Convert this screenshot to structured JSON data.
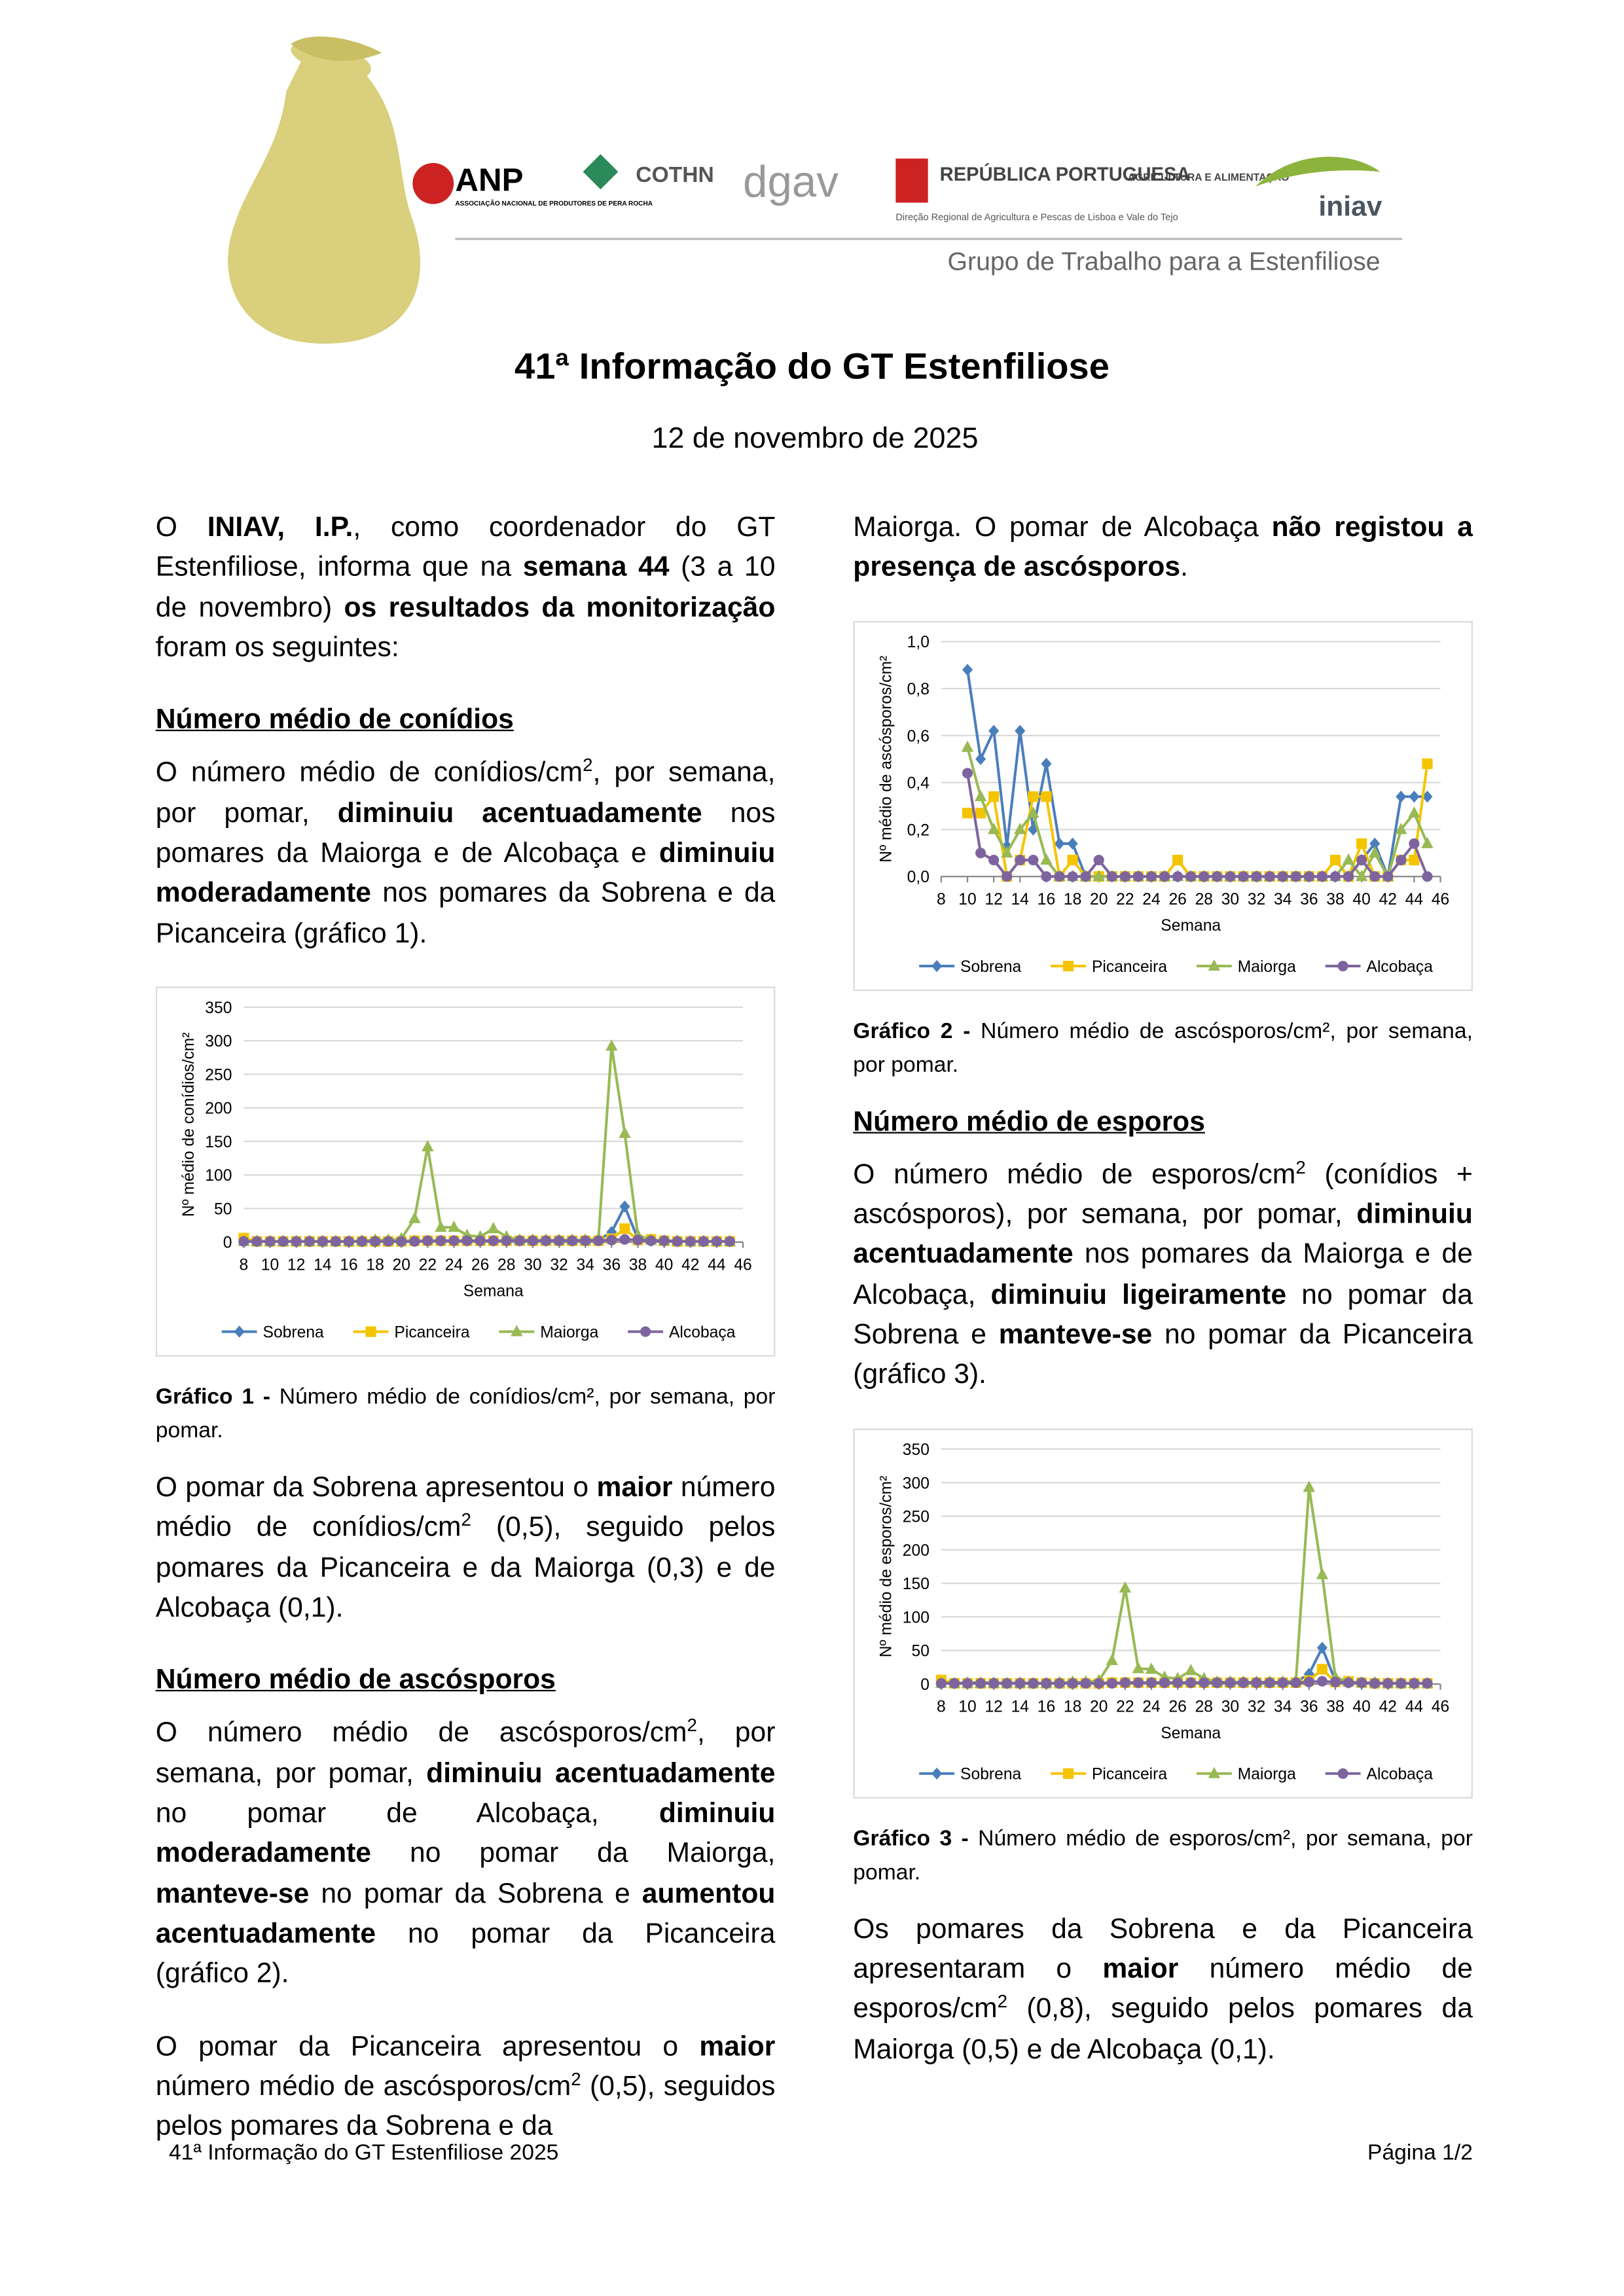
{
  "header": {
    "logos": [
      "ANP",
      "ASSOCIAÇÃO NACIONAL DE PRODUTORES DE PERA ROCHA",
      "COTHN",
      "dgav",
      "REPÚBLICA PORTUGUESA",
      "AGRICULTURA E ALIMENTAÇÃO",
      "Direção Regional de Agricultura e Pescas de Lisboa e Vale do Tejo",
      "iniav"
    ],
    "banner": "Grupo de Trabalho para a Estenfiliose"
  },
  "title": "41ª Informação do GT Estenfiliose",
  "date": "12 de novembro de 2025",
  "left_column": [
    {
      "kind": "paragraph",
      "runs": [
        "O ",
        {
          "style": "bold",
          "text": "INIAV, I.P."
        },
        ", como coordenador do GT Estenfiliose, informa que na ",
        {
          "style": "bold",
          "text": "semana 44"
        },
        " (3 a 10 de novembro) ",
        {
          "style": "bold",
          "text": "os resultados da monitorização"
        },
        " foram os seguintes:"
      ]
    },
    {
      "kind": "heading",
      "text": "Número médio de conídios"
    },
    {
      "kind": "paragraph",
      "runs": [
        "O número médio de conídios/cm",
        {
          "style": "sup",
          "text": "2"
        },
        ", por semana, por pomar, ",
        {
          "style": "bold",
          "text": "diminuiu acentuadamente"
        },
        " nos pomares da Maiorga e de Alcobaça e ",
        {
          "style": "bold",
          "text": "diminuiu moderadamente"
        },
        " nos pomares da Sobrena e da Picanceira (gráfico 1)."
      ]
    },
    {
      "kind": "chart",
      "chart_data": {
        "type": "line",
        "y_label": "Nº médio de conídios/cm²",
        "x_label": "Semana",
        "x": [
          8,
          9,
          10,
          11,
          12,
          13,
          14,
          15,
          16,
          17,
          18,
          19,
          20,
          21,
          22,
          23,
          24,
          25,
          26,
          27,
          28,
          29,
          30,
          31,
          32,
          33,
          34,
          35,
          36,
          37,
          38,
          39,
          40,
          41,
          42,
          43,
          44,
          45
        ],
        "xlim": [
          8,
          46
        ],
        "xticks": [
          8,
          10,
          12,
          14,
          16,
          18,
          20,
          22,
          24,
          26,
          28,
          30,
          32,
          34,
          36,
          38,
          40,
          42,
          44,
          46
        ],
        "ylim": [
          0,
          350
        ],
        "yticks": [
          0,
          50,
          100,
          150,
          200,
          250,
          300,
          350
        ],
        "grid": true,
        "series": [
          {
            "name": "Sobrena",
            "color": "#4a7ebb",
            "marker": "diamond",
            "values": [
              1,
              1,
              1,
              1,
              1,
              1,
              1,
              1,
              1,
              1,
              2,
              2,
              2,
              2,
              2,
              2,
              2,
              2,
              2,
              2,
              2,
              2,
              2,
              2,
              2,
              2,
              2,
              3,
              15,
              53,
              5,
              2,
              1,
              1,
              1,
              1,
              1,
              1
            ]
          },
          {
            "name": "Picanceira",
            "color": "#f5c400",
            "marker": "square",
            "values": [
              6,
              1,
              1,
              1,
              1,
              1,
              1,
              1,
              1,
              1,
              1,
              1,
              1,
              2,
              2,
              2,
              2,
              2,
              2,
              2,
              2,
              2,
              2,
              2,
              2,
              2,
              2,
              2,
              5,
              20,
              3,
              4,
              2,
              1,
              1,
              1,
              1,
              1
            ]
          },
          {
            "name": "Maiorga",
            "color": "#98b954",
            "marker": "triangle",
            "values": [
              1,
              1,
              1,
              1,
              1,
              1,
              1,
              1,
              1,
              2,
              3,
              3,
              5,
              35,
              142,
              22,
              22,
              10,
              8,
              20,
              8,
              3,
              3,
              3,
              3,
              3,
              3,
              5,
              292,
              162,
              10,
              3,
              2,
              2,
              1,
              1,
              1,
              1
            ]
          },
          {
            "name": "Alcobaça",
            "color": "#7e649e",
            "marker": "circle",
            "values": [
              1,
              1,
              1,
              1,
              1,
              1,
              1,
              1,
              1,
              1,
              1,
              1,
              1,
              1,
              2,
              2,
              2,
              2,
              2,
              2,
              2,
              2,
              2,
              2,
              2,
              2,
              2,
              2,
              3,
              4,
              3,
              2,
              2,
              1,
              1,
              1,
              1,
              1
            ]
          }
        ]
      }
    },
    {
      "kind": "caption",
      "runs": [
        {
          "style": "bold",
          "text": "Gráfico 1 -"
        },
        " Número médio de conídios/cm², por semana, por pomar."
      ]
    },
    {
      "kind": "paragraph",
      "runs": [
        "O pomar da Sobrena apresentou o ",
        {
          "style": "bold",
          "text": "maior"
        },
        " número médio de conídios/cm",
        {
          "style": "sup",
          "text": "2"
        },
        " (0,5), seguido pelos pomares da Picanceira e da Maiorga (0,3) e de Alcobaça (0,1)."
      ]
    },
    {
      "kind": "heading",
      "text": "Número médio de ascósporos"
    },
    {
      "kind": "paragraph",
      "runs": [
        "O número médio de ascósporos/cm",
        {
          "style": "sup",
          "text": "2"
        },
        ", por semana, por pomar, ",
        {
          "style": "bold",
          "text": "diminuiu acentuadamente"
        },
        " no pomar de Alcobaça, ",
        {
          "style": "bold",
          "text": "diminuiu moderadamente"
        },
        " no pomar da Maiorga, ",
        {
          "style": "bold",
          "text": "manteve-se"
        },
        " no pomar da Sobrena e ",
        {
          "style": "bold",
          "text": "aumentou acentuadamente"
        },
        " no pomar da Picanceira (gráfico 2)."
      ]
    },
    {
      "kind": "paragraph",
      "runs": [
        "O pomar da Picanceira apresentou o ",
        {
          "style": "bold",
          "text": "maior"
        },
        " número médio de ascósporos/cm",
        {
          "style": "sup",
          "text": "2"
        },
        " (0,5), seguidos pelos pomares da Sobrena e da"
      ]
    }
  ],
  "right_column": [
    {
      "kind": "paragraph",
      "runs": [
        "Maiorga. O pomar de Alcobaça ",
        {
          "style": "bold",
          "text": "não registou a presença de ascósporos"
        },
        "."
      ]
    },
    {
      "kind": "chart",
      "chart_data": {
        "type": "line",
        "y_label": "Nº médio de ascósporos/cm²",
        "x_label": "Semana",
        "x": [
          10,
          11,
          12,
          13,
          14,
          15,
          16,
          17,
          18,
          19,
          20,
          21,
          22,
          23,
          24,
          25,
          26,
          27,
          28,
          29,
          30,
          31,
          32,
          33,
          34,
          35,
          36,
          37,
          38,
          39,
          40,
          41,
          42,
          43,
          44,
          45
        ],
        "xlim": [
          8,
          46
        ],
        "xticks": [
          8,
          10,
          12,
          14,
          16,
          18,
          20,
          22,
          24,
          26,
          28,
          30,
          32,
          34,
          36,
          38,
          40,
          42,
          44,
          46
        ],
        "ylim": [
          0,
          1
        ],
        "yticks": [
          {
            "value": 0,
            "label": "0,0"
          },
          {
            "value": 0.2,
            "label": "0,2"
          },
          {
            "value": 0.4,
            "label": "0,4"
          },
          {
            "value": 0.6,
            "label": "0,6"
          },
          {
            "value": 0.8,
            "label": "0,8"
          },
          {
            "value": 1,
            "label": "1,0"
          }
        ],
        "grid": true,
        "series": [
          {
            "name": "Sobrena",
            "color": "#4a7ebb",
            "marker": "diamond",
            "values": [
              0.88,
              0.5,
              0.62,
              0.13,
              0.62,
              0.2,
              0.48,
              0.14,
              0.14,
              0,
              0,
              0,
              0,
              0,
              0,
              0,
              0,
              0,
              0,
              0,
              0,
              0,
              0,
              0,
              0,
              0,
              0,
              0,
              0,
              0,
              0.07,
              0.14,
              0,
              0.34,
              0.34,
              0.34
            ]
          },
          {
            "name": "Picanceira",
            "color": "#f5c400",
            "marker": "square",
            "values": [
              0.27,
              0.27,
              0.34,
              0,
              0.07,
              0.34,
              0.34,
              0,
              0.07,
              0,
              0,
              0,
              0,
              0,
              0,
              0,
              0.07,
              0,
              0,
              0,
              0,
              0,
              0,
              0,
              0,
              0,
              0,
              0,
              0.07,
              0,
              0.14,
              0,
              0,
              0.07,
              0.07,
              0.48
            ]
          },
          {
            "name": "Maiorga",
            "color": "#98b954",
            "marker": "triangle",
            "values": [
              0.55,
              0.34,
              0.2,
              0.1,
              0.2,
              0.27,
              0.07,
              0,
              0,
              0,
              0,
              0,
              0,
              0,
              0,
              0,
              0,
              0,
              0,
              0,
              0,
              0,
              0,
              0,
              0,
              0,
              0,
              0,
              0,
              0.07,
              0,
              0.1,
              0,
              0.2,
              0.27,
              0.14
            ]
          },
          {
            "name": "Alcobaça",
            "color": "#7e649e",
            "marker": "circle",
            "values": [
              0.44,
              0.1,
              0.07,
              0,
              0.07,
              0.07,
              0,
              0,
              0,
              0,
              0.07,
              0,
              0,
              0,
              0,
              0,
              0,
              0,
              0,
              0,
              0,
              0,
              0,
              0,
              0,
              0,
              0,
              0,
              0,
              0,
              0.07,
              0,
              0,
              0.07,
              0.14,
              0
            ]
          }
        ]
      }
    },
    {
      "kind": "caption",
      "runs": [
        {
          "style": "bold",
          "text": "Gráfico 2 -"
        },
        " Número médio de ascósporos/cm², por semana, por pomar."
      ]
    },
    {
      "kind": "heading",
      "text": "Número médio de esporos"
    },
    {
      "kind": "paragraph",
      "runs": [
        "O número médio de esporos/cm",
        {
          "style": "sup",
          "text": "2"
        },
        " (conídios + ascósporos), por semana, por pomar, ",
        {
          "style": "bold",
          "text": "diminuiu acentuadamente"
        },
        " nos pomares da Maiorga e de Alcobaça, ",
        {
          "style": "bold",
          "text": "diminuiu ligeiramente"
        },
        " no pomar da Sobrena e ",
        {
          "style": "bold",
          "text": "manteve-se"
        },
        " no pomar da Picanceira (gráfico 3)."
      ]
    },
    {
      "kind": "chart",
      "chart_data": {
        "type": "line",
        "y_label": "Nº médio de esporos/cm²",
        "x_label": "Semana",
        "x": [
          8,
          9,
          10,
          11,
          12,
          13,
          14,
          15,
          16,
          17,
          18,
          19,
          20,
          21,
          22,
          23,
          24,
          25,
          26,
          27,
          28,
          29,
          30,
          31,
          32,
          33,
          34,
          35,
          36,
          37,
          38,
          39,
          40,
          41,
          42,
          43,
          44,
          45
        ],
        "xlim": [
          8,
          46
        ],
        "xticks": [
          8,
          10,
          12,
          14,
          16,
          18,
          20,
          22,
          24,
          26,
          28,
          30,
          32,
          34,
          36,
          38,
          40,
          42,
          44,
          46
        ],
        "ylim": [
          0,
          350
        ],
        "yticks": [
          0,
          50,
          100,
          150,
          200,
          250,
          300,
          350
        ],
        "grid": true,
        "series": [
          {
            "name": "Sobrena",
            "color": "#4a7ebb",
            "marker": "diamond",
            "values": [
              1,
              1,
              2,
              2,
              2,
              1,
              2,
              1,
              1,
              1,
              2,
              2,
              2,
              2,
              2,
              2,
              2,
              2,
              2,
              2,
              2,
              2,
              2,
              2,
              2,
              2,
              2,
              3,
              15,
              54,
              5,
              2,
              1,
              1,
              1,
              1,
              1,
              1
            ]
          },
          {
            "name": "Picanceira",
            "color": "#f5c400",
            "marker": "square",
            "values": [
              6,
              1,
              1,
              1,
              1,
              1,
              1,
              1,
              1,
              1,
              1,
              1,
              1,
              2,
              2,
              2,
              2,
              2,
              2,
              2,
              2,
              2,
              2,
              2,
              2,
              2,
              2,
              2,
              5,
              22,
              3,
              4,
              2,
              1,
              1,
              1,
              1,
              1
            ]
          },
          {
            "name": "Maiorga",
            "color": "#98b954",
            "marker": "triangle",
            "values": [
              1,
              1,
              1,
              1,
              1,
              1,
              1,
              1,
              1,
              2,
              3,
              3,
              5,
              35,
              143,
              23,
              22,
              10,
              8,
              20,
              8,
              3,
              3,
              3,
              3,
              3,
              3,
              5,
              293,
              163,
              10,
              3,
              2,
              2,
              1,
              1,
              1,
              1
            ]
          },
          {
            "name": "Alcobaça",
            "color": "#7e649e",
            "marker": "circle",
            "values": [
              1,
              1,
              1,
              1,
              1,
              1,
              1,
              1,
              1,
              1,
              1,
              1,
              1,
              1,
              2,
              2,
              2,
              2,
              2,
              2,
              2,
              2,
              2,
              2,
              2,
              2,
              2,
              2,
              3,
              4,
              3,
              2,
              2,
              1,
              1,
              1,
              1,
              1
            ]
          }
        ]
      }
    },
    {
      "kind": "caption",
      "runs": [
        {
          "style": "bold",
          "text": "Gráfico 3 -"
        },
        " Número médio de esporos/cm², por semana, por pomar."
      ]
    },
    {
      "kind": "paragraph",
      "runs": [
        "Os pomares da Sobrena e da Picanceira apresentaram o ",
        {
          "style": "bold",
          "text": "maior"
        },
        " número médio de esporos/cm",
        {
          "style": "sup",
          "text": "2"
        },
        " (0,8), seguido pelos pomares da Maiorga (0,5) e de Alcobaça (0,1)."
      ]
    }
  ],
  "footer": {
    "left": "41ª Informação do GT Estenfiliose 2025",
    "right": "Página 1/2"
  }
}
